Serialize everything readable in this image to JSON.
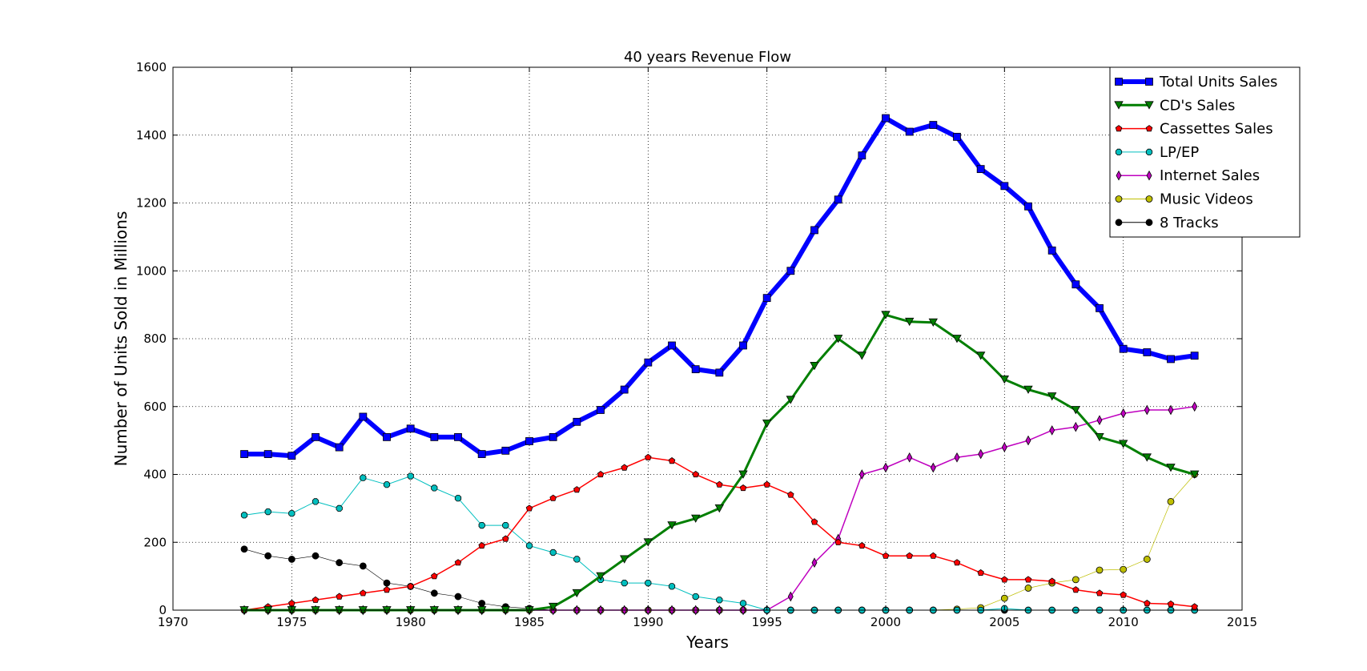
{
  "chart_data": {
    "type": "line",
    "title": "40 years Revenue Flow",
    "xlabel": "Years",
    "ylabel": "Number of Units Sold in Millions",
    "xlim": [
      1970,
      2015
    ],
    "ylim": [
      0,
      1600
    ],
    "xticks": [
      1970,
      1975,
      1980,
      1985,
      1990,
      1995,
      2000,
      2005,
      2010,
      2015
    ],
    "yticks": [
      0,
      200,
      400,
      600,
      800,
      1000,
      1200,
      1400,
      1600
    ],
    "grid": true,
    "legend_position": "top-right",
    "x": [
      1973,
      1974,
      1975,
      1976,
      1977,
      1978,
      1979,
      1980,
      1981,
      1982,
      1983,
      1984,
      1985,
      1986,
      1987,
      1988,
      1989,
      1990,
      1991,
      1992,
      1993,
      1994,
      1995,
      1996,
      1997,
      1998,
      1999,
      2000,
      2001,
      2002,
      2003,
      2004,
      2005,
      2006,
      2007,
      2008,
      2009,
      2010,
      2011,
      2012,
      2013
    ],
    "series": [
      {
        "name": "Total Units Sales",
        "color": "#0000ff",
        "marker": "square",
        "lineWidth": 6,
        "markerSize": 9,
        "values": [
          460,
          460,
          455,
          510,
          480,
          570,
          510,
          535,
          510,
          510,
          460,
          470,
          498,
          510,
          555,
          590,
          650,
          730,
          780,
          710,
          700,
          780,
          920,
          1000,
          1120,
          1210,
          1340,
          1450,
          1410,
          1430,
          1395,
          1300,
          1250,
          1190,
          1060,
          960,
          890,
          770,
          760,
          740,
          750
        ]
      },
      {
        "name": "CD's Sales",
        "color": "#007f00",
        "marker": "triangle-down",
        "lineWidth": 3,
        "markerSize": 10,
        "values": [
          0,
          0,
          0,
          0,
          0,
          0,
          0,
          0,
          0,
          0,
          0,
          0,
          0,
          10,
          50,
          100,
          150,
          200,
          250,
          270,
          300,
          400,
          550,
          620,
          720,
          800,
          750,
          870,
          850,
          848,
          800,
          750,
          680,
          650,
          630,
          590,
          510,
          490,
          450,
          420,
          400
        ]
      },
      {
        "name": "Cassettes Sales",
        "color": "#ff0000",
        "marker": "pentagon",
        "lineWidth": 1.5,
        "markerSize": 8,
        "values": [
          0,
          10,
          20,
          30,
          40,
          50,
          60,
          70,
          100,
          140,
          190,
          210,
          300,
          330,
          355,
          400,
          420,
          450,
          440,
          400,
          370,
          360,
          370,
          340,
          260,
          200,
          190,
          160,
          160,
          160,
          140,
          110,
          90,
          90,
          85,
          60,
          50,
          45,
          20,
          18,
          10
        ]
      },
      {
        "name": "LP/EP",
        "color": "#00bfbf",
        "marker": "octagon",
        "lineWidth": 1,
        "markerSize": 8,
        "values": [
          280,
          290,
          285,
          320,
          300,
          390,
          370,
          395,
          360,
          330,
          250,
          250,
          190,
          170,
          150,
          90,
          80,
          80,
          70,
          40,
          30,
          20,
          0,
          0,
          0,
          0,
          0,
          0,
          0,
          0,
          0,
          0,
          5,
          0,
          0,
          0,
          0,
          0,
          0,
          0,
          0
        ]
      },
      {
        "name": "Internet Sales",
        "color": "#bf00bf",
        "marker": "diamond",
        "lineWidth": 1.5,
        "markerSize": 9,
        "values": [
          0,
          0,
          0,
          0,
          0,
          0,
          0,
          0,
          0,
          0,
          0,
          0,
          0,
          0,
          0,
          0,
          0,
          0,
          0,
          0,
          0,
          0,
          0,
          40,
          140,
          210,
          400,
          420,
          450,
          420,
          450,
          460,
          480,
          500,
          530,
          540,
          560,
          580,
          590,
          590,
          600
        ]
      },
      {
        "name": "Music Videos",
        "color": "#bfbf00",
        "marker": "circle",
        "lineWidth": 0.7,
        "markerSize": 8,
        "values": [
          0,
          0,
          0,
          0,
          0,
          0,
          0,
          0,
          0,
          0,
          0,
          0,
          0,
          0,
          0,
          0,
          0,
          0,
          0,
          0,
          0,
          0,
          0,
          0,
          0,
          0,
          0,
          0,
          0,
          0,
          3,
          7,
          35,
          65,
          80,
          90,
          118,
          120,
          150,
          320,
          400
        ]
      },
      {
        "name": "8 Tracks",
        "color": "#000000",
        "marker": "circle",
        "lineWidth": 0.6,
        "markerSize": 8,
        "values": [
          180,
          160,
          150,
          160,
          140,
          130,
          80,
          70,
          50,
          40,
          20,
          10,
          5,
          0,
          0,
          0,
          0,
          0,
          0,
          0,
          0,
          0,
          0,
          0,
          0,
          0,
          0,
          0,
          0,
          0,
          0,
          0,
          0,
          0,
          0,
          0,
          0,
          0,
          0,
          0,
          0
        ]
      }
    ]
  }
}
